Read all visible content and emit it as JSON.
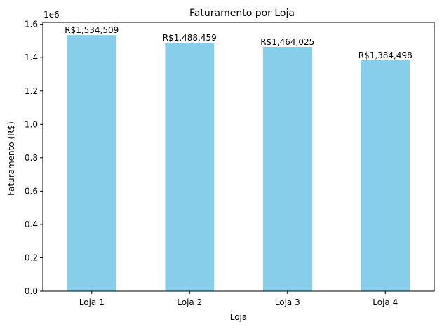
{
  "chart_data": {
    "type": "bar",
    "title": "Faturamento por Loja",
    "xlabel": "Loja",
    "ylabel": "Faturamento (R$)",
    "y_offset_text": "1e6",
    "categories": [
      "Loja 1",
      "Loja 2",
      "Loja 3",
      "Loja 4"
    ],
    "values": [
      1534509,
      1488459,
      1464025,
      1384498
    ],
    "data_labels": [
      "R$1,534,509",
      "R$1,488,459",
      "R$1,464,025",
      "R$1,384,498"
    ],
    "ylim": [
      0,
      1611234
    ],
    "yticks": [
      0,
      0.2,
      0.4,
      0.6,
      0.8,
      1.0,
      1.2,
      1.4,
      1.6
    ],
    "ytick_labels": [
      "0.0",
      "0.2",
      "0.4",
      "0.6",
      "0.8",
      "1.0",
      "1.2",
      "1.4",
      "1.6"
    ],
    "ytick_scale": 1000000,
    "bar_color": "#87ceeb",
    "grid": false,
    "legend": "none"
  }
}
